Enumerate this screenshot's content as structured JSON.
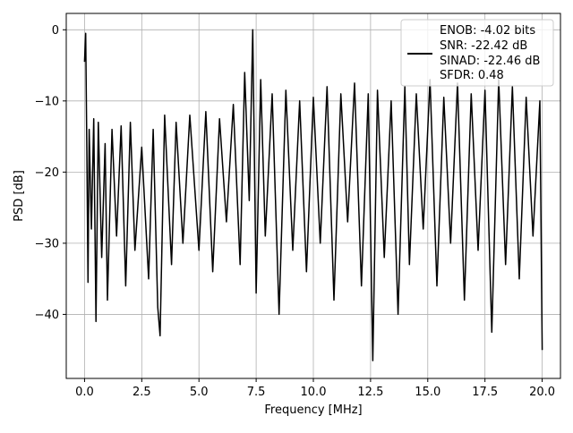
{
  "chart_data": {
    "type": "line",
    "title": "",
    "xlabel": "Frequency [MHz]",
    "ylabel": "PSD [dB]",
    "xlim": [
      -0.8,
      20.8
    ],
    "ylim": [
      -49.0,
      2.3
    ],
    "xticks": [
      0.0,
      2.5,
      5.0,
      7.5,
      10.0,
      12.5,
      15.0,
      17.5,
      20.0
    ],
    "xtick_labels": [
      "0.0",
      "2.5",
      "5.0",
      "7.5",
      "10.0",
      "12.5",
      "15.0",
      "17.5",
      "20.0"
    ],
    "yticks": [
      0,
      -10,
      -20,
      -30,
      -40
    ],
    "ytick_labels": [
      "0",
      "−10",
      "−20",
      "−30",
      "−40"
    ],
    "grid": true,
    "legend_position": "top-right",
    "legend_lines": [
      "ENOB: -4.02 bits",
      "SNR: -22.42 dB",
      "SINAD: -22.46 dB",
      "SFDR: 0.48"
    ],
    "series": [
      {
        "color": "#000000",
        "x": [
          0.0,
          0.05,
          0.1,
          0.15,
          0.2,
          0.3,
          0.4,
          0.5,
          0.6,
          0.75,
          0.9,
          1.0,
          1.2,
          1.4,
          1.6,
          1.8,
          2.0,
          2.2,
          2.5,
          2.8,
          3.0,
          3.2,
          3.3,
          3.5,
          3.8,
          4.0,
          4.3,
          4.6,
          5.0,
          5.3,
          5.6,
          5.9,
          6.2,
          6.5,
          6.8,
          7.0,
          7.2,
          7.35,
          7.5,
          7.7,
          7.9,
          8.2,
          8.5,
          8.8,
          9.1,
          9.4,
          9.7,
          10.0,
          10.3,
          10.6,
          10.9,
          11.2,
          11.5,
          11.8,
          12.1,
          12.4,
          12.6,
          12.8,
          13.1,
          13.4,
          13.7,
          14.0,
          14.2,
          14.5,
          14.8,
          15.1,
          15.4,
          15.7,
          16.0,
          16.3,
          16.6,
          16.9,
          17.2,
          17.5,
          17.8,
          18.1,
          18.4,
          18.7,
          19.0,
          19.3,
          19.6,
          19.9,
          20.0
        ],
        "y": [
          -4.5,
          -0.5,
          -17.0,
          -35.5,
          -14.0,
          -28.0,
          -12.5,
          -41.0,
          -13.0,
          -32.0,
          -16.0,
          -38.0,
          -14.0,
          -29.0,
          -13.5,
          -36.0,
          -13.0,
          -31.0,
          -16.5,
          -35.0,
          -14.0,
          -39.0,
          -43.0,
          -12.0,
          -33.0,
          -13.0,
          -30.0,
          -12.0,
          -31.0,
          -11.5,
          -34.0,
          -12.5,
          -27.0,
          -10.5,
          -33.0,
          -6.0,
          -24.0,
          0.0,
          -37.0,
          -7.0,
          -29.0,
          -9.0,
          -40.0,
          -8.5,
          -31.0,
          -10.0,
          -34.0,
          -9.5,
          -30.0,
          -8.0,
          -38.0,
          -9.0,
          -27.0,
          -7.5,
          -36.0,
          -9.0,
          -46.5,
          -8.5,
          -32.0,
          -10.0,
          -40.0,
          -8.0,
          -33.0,
          -9.0,
          -28.0,
          -7.0,
          -36.0,
          -9.5,
          -30.0,
          -7.5,
          -38.0,
          -9.0,
          -31.0,
          -8.5,
          -42.5,
          -7.0,
          -33.0,
          -8.0,
          -35.0,
          -9.5,
          -29.0,
          -10.0,
          -45.0
        ]
      }
    ]
  }
}
